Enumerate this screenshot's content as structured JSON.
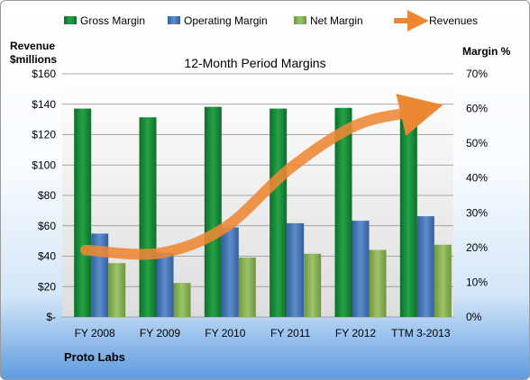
{
  "chart_data": {
    "type": "bar",
    "title": "12-Month Period Margins",
    "company": "Proto Labs",
    "y_left_label_line1": "Revenue",
    "y_left_label_line2": "$millions",
    "y_right_label": "Margin %",
    "categories": [
      "FY 2008",
      "FY 2009",
      "FY 2010",
      "FY 2011",
      "FY 2012",
      "TTM 3-2013"
    ],
    "y_left_ticks": [
      "$-",
      "$20",
      "$40",
      "$60",
      "$80",
      "$100",
      "$120",
      "$140",
      "$160"
    ],
    "y_right_ticks": [
      "0%",
      "10%",
      "20%",
      "30%",
      "40%",
      "50%",
      "60%",
      "70%"
    ],
    "ylim_left": [
      0,
      160
    ],
    "ylim_right": [
      0,
      70
    ],
    "grid": true,
    "legend_placement": "top",
    "series": [
      {
        "name": "Gross Margin",
        "kind": "bar",
        "axis": "right",
        "color": "#1f8f3a",
        "values": [
          60,
          57.5,
          60.5,
          60,
          60.2,
          61
        ]
      },
      {
        "name": "Operating Margin",
        "kind": "bar",
        "axis": "right",
        "color": "#4f7fbf",
        "values": [
          24,
          18.5,
          25.8,
          27,
          27.7,
          29
        ]
      },
      {
        "name": "Net Margin",
        "kind": "bar",
        "axis": "right",
        "color": "#8db456",
        "values": [
          15.5,
          9.8,
          17.1,
          18.2,
          19.3,
          20.8
        ]
      },
      {
        "name": "Revenues",
        "kind": "line",
        "axis": "left",
        "color": "#ee8733",
        "values": [
          44,
          42,
          59,
          98,
          126,
          135
        ]
      }
    ]
  }
}
